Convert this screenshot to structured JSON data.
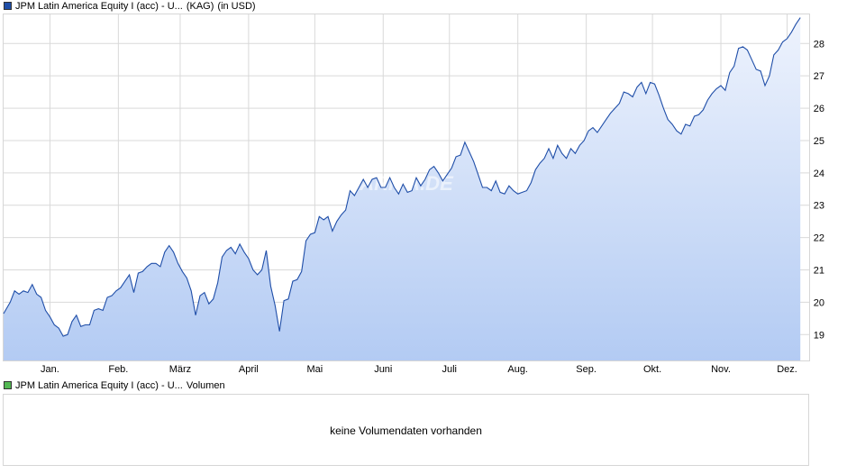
{
  "price_legend": {
    "color": "#1f4ea8",
    "name": "JPM Latin America Equity I (acc) - U...",
    "exchange": "(KAG)",
    "currency": "(in USD)"
  },
  "volume_legend": {
    "color": "#53b853",
    "name": "JPM Latin America Equity I (acc) - U...",
    "label": "Volumen"
  },
  "volume_message": "keine Volumendaten vorhanden",
  "watermark": "ARIVA.DE",
  "chart_data": {
    "type": "area",
    "title": "",
    "xlabel": "",
    "ylabel": "",
    "y_axis_position": "right",
    "grid": true,
    "ylim": [
      18.2,
      28.9
    ],
    "yticks": [
      19,
      20,
      21,
      22,
      23,
      24,
      25,
      26,
      27,
      28
    ],
    "xlim": [
      0,
      365
    ],
    "month_ticks": [
      {
        "label": "Jan.",
        "day": 21
      },
      {
        "label": "Feb.",
        "day": 52
      },
      {
        "label": "März",
        "day": 80
      },
      {
        "label": "April",
        "day": 111
      },
      {
        "label": "Mai",
        "day": 141
      },
      {
        "label": "Juni",
        "day": 172
      },
      {
        "label": "Juli",
        "day": 202
      },
      {
        "label": "Aug.",
        "day": 233
      },
      {
        "label": "Sep.",
        "day": 264
      },
      {
        "label": "Okt.",
        "day": 294
      },
      {
        "label": "Nov.",
        "day": 325
      },
      {
        "label": "Dez.",
        "day": 355
      }
    ],
    "colors": {
      "line": "#1f4ea8",
      "fill_top": "#eef3fd",
      "fill_bottom": "#b3cbf3",
      "grid": "#d9d9d9"
    },
    "series": [
      {
        "values": [
          [
            0,
            19.65
          ],
          [
            3,
            20.0
          ],
          [
            5,
            20.35
          ],
          [
            7,
            20.25
          ],
          [
            9,
            20.35
          ],
          [
            11,
            20.3
          ],
          [
            13,
            20.55
          ],
          [
            15,
            20.25
          ],
          [
            17,
            20.15
          ],
          [
            19,
            19.75
          ],
          [
            21,
            19.55
          ],
          [
            23,
            19.3
          ],
          [
            25,
            19.2
          ],
          [
            27,
            18.95
          ],
          [
            29,
            19.0
          ],
          [
            31,
            19.4
          ],
          [
            33,
            19.6
          ],
          [
            35,
            19.25
          ],
          [
            37,
            19.3
          ],
          [
            39,
            19.3
          ],
          [
            41,
            19.75
          ],
          [
            43,
            19.8
          ],
          [
            45,
            19.75
          ],
          [
            47,
            20.15
          ],
          [
            49,
            20.2
          ],
          [
            51,
            20.35
          ],
          [
            53,
            20.45
          ],
          [
            55,
            20.65
          ],
          [
            57,
            20.85
          ],
          [
            59,
            20.3
          ],
          [
            61,
            20.9
          ],
          [
            63,
            20.95
          ],
          [
            65,
            21.1
          ],
          [
            67,
            21.2
          ],
          [
            69,
            21.2
          ],
          [
            71,
            21.1
          ],
          [
            73,
            21.55
          ],
          [
            75,
            21.75
          ],
          [
            77,
            21.55
          ],
          [
            79,
            21.2
          ],
          [
            81,
            20.95
          ],
          [
            83,
            20.75
          ],
          [
            85,
            20.35
          ],
          [
            87,
            19.6
          ],
          [
            89,
            20.2
          ],
          [
            91,
            20.3
          ],
          [
            93,
            19.95
          ],
          [
            95,
            20.1
          ],
          [
            97,
            20.6
          ],
          [
            99,
            21.4
          ],
          [
            101,
            21.6
          ],
          [
            103,
            21.7
          ],
          [
            105,
            21.5
          ],
          [
            107,
            21.8
          ],
          [
            109,
            21.55
          ],
          [
            111,
            21.35
          ],
          [
            113,
            21.0
          ],
          [
            115,
            20.85
          ],
          [
            117,
            21.0
          ],
          [
            119,
            21.6
          ],
          [
            121,
            20.5
          ],
          [
            123,
            19.9
          ],
          [
            125,
            19.1
          ],
          [
            127,
            20.05
          ],
          [
            129,
            20.1
          ],
          [
            131,
            20.65
          ],
          [
            133,
            20.7
          ],
          [
            135,
            20.95
          ],
          [
            137,
            21.9
          ],
          [
            139,
            22.1
          ],
          [
            141,
            22.15
          ],
          [
            143,
            22.65
          ],
          [
            145,
            22.55
          ],
          [
            147,
            22.65
          ],
          [
            149,
            22.2
          ],
          [
            151,
            22.5
          ],
          [
            153,
            22.7
          ],
          [
            155,
            22.85
          ],
          [
            157,
            23.45
          ],
          [
            159,
            23.3
          ],
          [
            161,
            23.55
          ],
          [
            163,
            23.8
          ],
          [
            165,
            23.55
          ],
          [
            167,
            23.8
          ],
          [
            169,
            23.85
          ],
          [
            171,
            23.55
          ],
          [
            173,
            23.55
          ],
          [
            175,
            23.85
          ],
          [
            177,
            23.55
          ],
          [
            179,
            23.35
          ],
          [
            181,
            23.65
          ],
          [
            183,
            23.4
          ],
          [
            185,
            23.45
          ],
          [
            187,
            23.85
          ],
          [
            189,
            23.6
          ],
          [
            191,
            23.8
          ],
          [
            193,
            24.1
          ],
          [
            195,
            24.2
          ],
          [
            197,
            24.0
          ],
          [
            199,
            23.75
          ],
          [
            201,
            23.95
          ],
          [
            203,
            24.15
          ],
          [
            205,
            24.5
          ],
          [
            207,
            24.55
          ],
          [
            209,
            24.95
          ],
          [
            211,
            24.65
          ],
          [
            213,
            24.35
          ],
          [
            215,
            23.95
          ],
          [
            217,
            23.55
          ],
          [
            219,
            23.55
          ],
          [
            221,
            23.45
          ],
          [
            223,
            23.75
          ],
          [
            225,
            23.4
          ],
          [
            227,
            23.35
          ],
          [
            229,
            23.6
          ],
          [
            231,
            23.45
          ],
          [
            233,
            23.35
          ],
          [
            235,
            23.4
          ],
          [
            237,
            23.45
          ],
          [
            239,
            23.7
          ],
          [
            241,
            24.1
          ],
          [
            243,
            24.3
          ],
          [
            245,
            24.45
          ],
          [
            247,
            24.75
          ],
          [
            249,
            24.45
          ],
          [
            251,
            24.85
          ],
          [
            253,
            24.6
          ],
          [
            255,
            24.45
          ],
          [
            257,
            24.75
          ],
          [
            259,
            24.6
          ],
          [
            261,
            24.85
          ],
          [
            263,
            25.0
          ],
          [
            265,
            25.3
          ],
          [
            267,
            25.4
          ],
          [
            269,
            25.25
          ],
          [
            271,
            25.45
          ],
          [
            273,
            25.65
          ],
          [
            275,
            25.85
          ],
          [
            277,
            26.0
          ],
          [
            279,
            26.15
          ],
          [
            281,
            26.5
          ],
          [
            283,
            26.45
          ],
          [
            285,
            26.35
          ],
          [
            287,
            26.65
          ],
          [
            289,
            26.8
          ],
          [
            291,
            26.45
          ],
          [
            293,
            26.8
          ],
          [
            295,
            26.75
          ],
          [
            297,
            26.4
          ],
          [
            299,
            26.0
          ],
          [
            301,
            25.65
          ],
          [
            303,
            25.5
          ],
          [
            305,
            25.3
          ],
          [
            307,
            25.2
          ],
          [
            309,
            25.5
          ],
          [
            311,
            25.45
          ],
          [
            313,
            25.75
          ],
          [
            315,
            25.8
          ],
          [
            317,
            25.95
          ],
          [
            319,
            26.25
          ],
          [
            321,
            26.45
          ],
          [
            323,
            26.6
          ],
          [
            325,
            26.7
          ],
          [
            327,
            26.55
          ],
          [
            329,
            27.1
          ],
          [
            331,
            27.3
          ],
          [
            333,
            27.85
          ],
          [
            335,
            27.9
          ],
          [
            337,
            27.8
          ],
          [
            339,
            27.5
          ],
          [
            341,
            27.2
          ],
          [
            343,
            27.15
          ],
          [
            345,
            26.7
          ],
          [
            347,
            27.0
          ],
          [
            349,
            27.65
          ],
          [
            351,
            27.8
          ],
          [
            353,
            28.05
          ],
          [
            355,
            28.15
          ],
          [
            357,
            28.35
          ],
          [
            359,
            28.6
          ],
          [
            361,
            28.8
          ]
        ]
      }
    ]
  }
}
